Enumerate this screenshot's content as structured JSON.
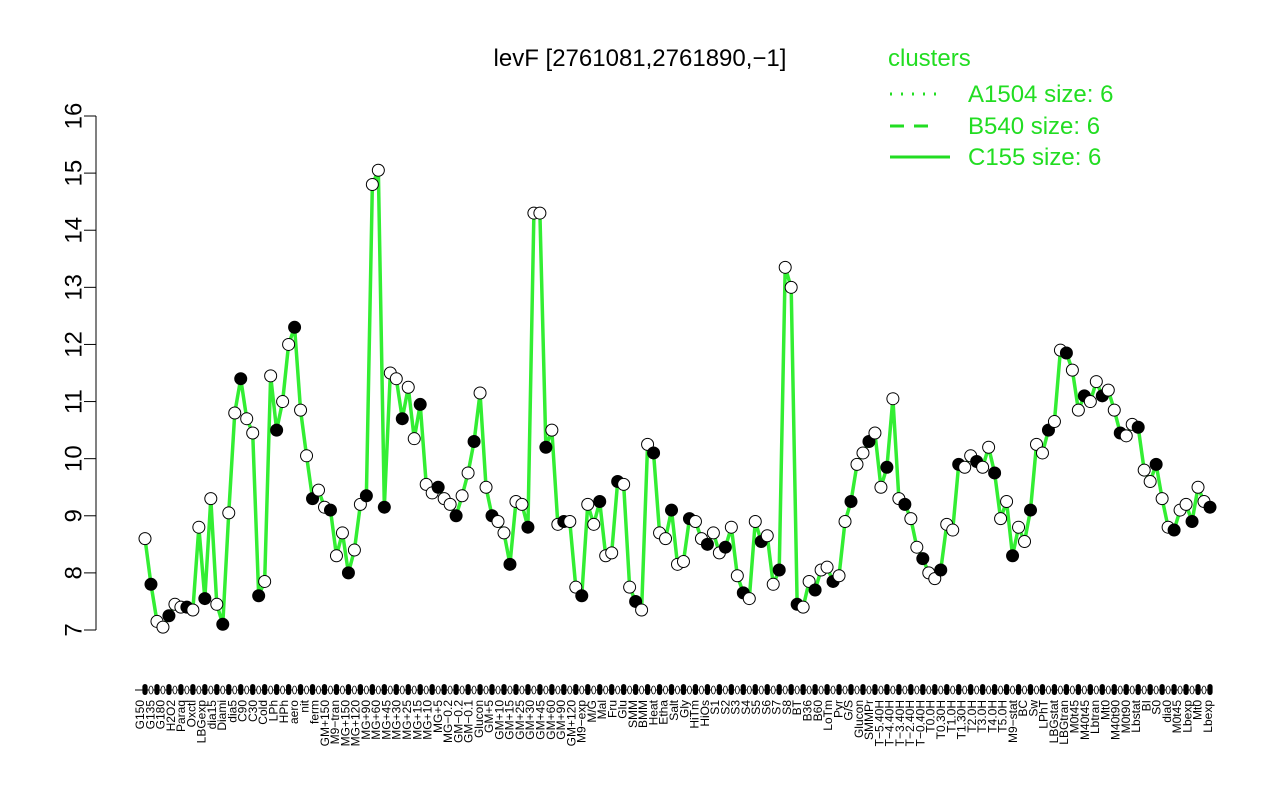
{
  "chart_data": {
    "type": "line",
    "title": "levF [2761081,2761890,−1]",
    "xlabel": "",
    "ylabel": "",
    "ylim": [
      7,
      16
    ],
    "y_ticks": [
      7,
      8,
      9,
      10,
      11,
      12,
      13,
      14,
      15,
      16
    ],
    "grid": false,
    "legend": {
      "title": "clusters",
      "position": "top-right",
      "entries": [
        {
          "label": "A1504 size: 6",
          "style": "dotted"
        },
        {
          "label": "B540 size: 6",
          "style": "dashed"
        },
        {
          "label": "C155 size: 6",
          "style": "solid"
        }
      ]
    },
    "x_tick_labels": [
      "G150",
      "G135",
      "G180",
      "H2O2",
      "Paraq",
      "Oxctl",
      "LBGexp",
      "dia15",
      "Diami",
      "dia5",
      "C90",
      "C30",
      "Cold",
      "LPh",
      "HPh",
      "aero",
      "nit",
      "ferm",
      "GM+150",
      "M9−tran",
      "MG+150",
      "MG+120",
      "MG+90",
      "MG+60",
      "MG+45",
      "MG+30",
      "MG+25",
      "MG+15",
      "MG+10",
      "MG+5",
      "MG−0.2",
      "GM−0.2",
      "GM−0.1",
      "Glucon",
      "GM+5",
      "GM+10",
      "GM+15",
      "GM+25",
      "GM+30",
      "GM+45",
      "GM+60",
      "GM+90",
      "GM+120",
      "M9−exp",
      "M/G",
      "Mal",
      "Fru",
      "Glu",
      "SMM",
      "BMM",
      "Heat",
      "Etha",
      "Salt",
      "Gly",
      "HiTm",
      "HiOs",
      "S1",
      "S2",
      "S3",
      "S4",
      "S5",
      "S6",
      "S7",
      "S8",
      "BT",
      "B36",
      "B60",
      "LoTm",
      "Pyr",
      "G/S",
      "Glucon",
      "SMMPr",
      "T−5.40H",
      "T−4.40H",
      "T−3.40H",
      "T−2.40H",
      "T−0.40H",
      "T0.0H",
      "T0.30H",
      "T1.0H",
      "T1.30H",
      "T2.0H",
      "T3.0H",
      "T4.0H",
      "T5.0H",
      "M9−stat",
      "BC",
      "Sw",
      "LPhT",
      "LBGstat",
      "LBGtran",
      "M0t45",
      "M40t45",
      "Lbtran",
      "Mt0",
      "M40t90",
      "M0t90",
      "Lbstat",
      "BI",
      "S0",
      "dia0",
      "M0t45",
      "Lbexp",
      "Mt0",
      "Lbexp"
    ],
    "series": [
      {
        "values": [
          8.6,
          7.8,
          7.15,
          7.05,
          7.25,
          7.45,
          7.4,
          7.4,
          7.35,
          8.8,
          7.55,
          9.3,
          7.45,
          7.1,
          9.05,
          10.8,
          11.4,
          10.7,
          10.45,
          7.6,
          7.85,
          11.45,
          10.5,
          11.0,
          12.0,
          12.3,
          10.85,
          10.05,
          9.3,
          9.45,
          9.15,
          9.1,
          8.3,
          8.7,
          8.0,
          8.4,
          9.2,
          9.35,
          14.8,
          15.05,
          9.15,
          11.5,
          11.4,
          10.7,
          11.25,
          10.35,
          10.95,
          9.55,
          9.4,
          9.5,
          9.3,
          9.2,
          9.0,
          9.35,
          9.75,
          10.3,
          11.15,
          9.5,
          9.0,
          8.9,
          8.7,
          8.15,
          9.25,
          9.2,
          8.8,
          14.3,
          14.3,
          10.2,
          10.5,
          8.85,
          8.9,
          8.9,
          7.75,
          7.6,
          9.2,
          8.85,
          9.25,
          8.3,
          8.35,
          9.6,
          9.55,
          7.75,
          7.5,
          7.35,
          10.25,
          10.1,
          8.7,
          8.6,
          9.1,
          8.15,
          8.2,
          8.95,
          8.9,
          8.6,
          8.5,
          8.7,
          8.35,
          8.45,
          8.8,
          7.95,
          7.65,
          7.55,
          8.9,
          8.55,
          8.65,
          7.8,
          8.05,
          13.35,
          13.0,
          7.45,
          7.4,
          7.85,
          7.7,
          8.05,
          8.1,
          7.85,
          7.95,
          8.9,
          9.25,
          9.9,
          10.1,
          10.3,
          10.45,
          9.5,
          9.85,
          11.05,
          9.3,
          9.2,
          8.95,
          8.45,
          8.25,
          8.0,
          7.9,
          8.05,
          8.85,
          8.75,
          9.9,
          9.85,
          10.05,
          9.95,
          9.85,
          10.2,
          9.75,
          8.95,
          9.25,
          8.3,
          8.8,
          8.55,
          9.1,
          10.25,
          10.1,
          10.5,
          10.65,
          11.9,
          11.85,
          11.55,
          10.85,
          11.1,
          11.0,
          11.35,
          11.1,
          11.2,
          10.85,
          10.45,
          10.4,
          10.6,
          10.55,
          9.8,
          9.6,
          9.9,
          9.3,
          8.8,
          8.75,
          9.1,
          9.2,
          8.9,
          9.5,
          9.25,
          9.15
        ]
      }
    ]
  }
}
